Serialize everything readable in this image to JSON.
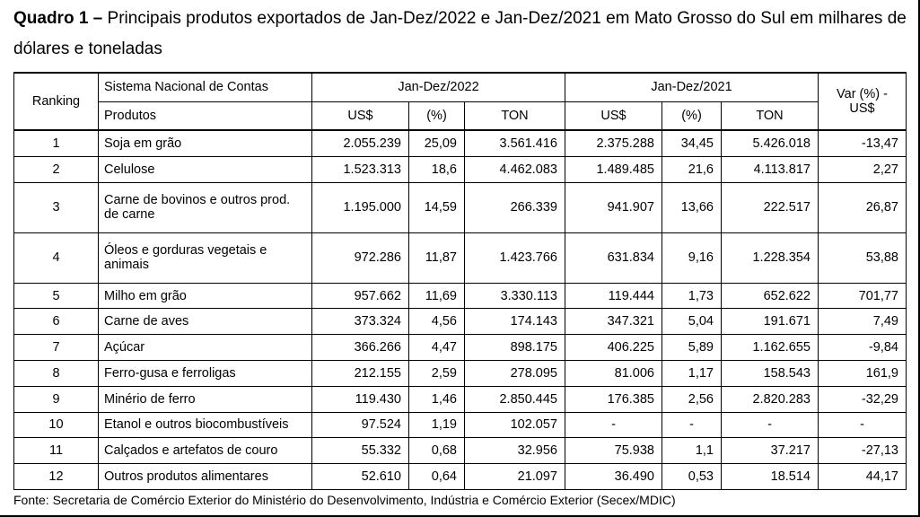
{
  "title": {
    "bold": "Quadro 1 –",
    "text": " Principais produtos exportados de Jan-Dez/2022 e Jan-Dez/2021 em Mato Grosso do Sul em milhares de dólares e toneladas"
  },
  "header": {
    "ranking": "Ranking",
    "sistema": "Sistema Nacional de Contas",
    "produtos": "Produtos",
    "period_2022": "Jan-Dez/2022",
    "period_2021": "Jan-Dez/2021",
    "var": "Var (%) - US$",
    "usd": "US$",
    "pct": "(%)",
    "ton": "TON"
  },
  "rows": [
    {
      "ranking": "1",
      "produto": "Soja em grão",
      "usd_2022": "2.055.239",
      "pct_2022": "25,09",
      "ton_2022": "3.561.416",
      "usd_2021": "2.375.288",
      "pct_2021": "34,45",
      "ton_2021": "5.426.018",
      "var": "-13,47"
    },
    {
      "ranking": "2",
      "produto": "Celulose",
      "usd_2022": "1.523.313",
      "pct_2022": "18,6",
      "ton_2022": "4.462.083",
      "usd_2021": "1.489.485",
      "pct_2021": "21,6",
      "ton_2021": "4.113.817",
      "var": "2,27"
    },
    {
      "ranking": "3",
      "produto": "Carne de bovinos e outros prod. de carne",
      "usd_2022": "1.195.000",
      "pct_2022": "14,59",
      "ton_2022": "266.339",
      "usd_2021": "941.907",
      "pct_2021": "13,66",
      "ton_2021": "222.517",
      "var": "26,87"
    },
    {
      "ranking": "4",
      "produto": "Óleos e gorduras vegetais e animais",
      "usd_2022": "972.286",
      "pct_2022": "11,87",
      "ton_2022": "1.423.766",
      "usd_2021": "631.834",
      "pct_2021": "9,16",
      "ton_2021": "1.228.354",
      "var": "53,88"
    },
    {
      "ranking": "5",
      "produto": "Milho em grão",
      "usd_2022": "957.662",
      "pct_2022": "11,69",
      "ton_2022": "3.330.113",
      "usd_2021": "119.444",
      "pct_2021": "1,73",
      "ton_2021": "652.622",
      "var": "701,77"
    },
    {
      "ranking": "6",
      "produto": "Carne de aves",
      "usd_2022": "373.324",
      "pct_2022": "4,56",
      "ton_2022": "174.143",
      "usd_2021": "347.321",
      "pct_2021": "5,04",
      "ton_2021": "191.671",
      "var": "7,49"
    },
    {
      "ranking": "7",
      "produto": "Açúcar",
      "usd_2022": "366.266",
      "pct_2022": "4,47",
      "ton_2022": "898.175",
      "usd_2021": "406.225",
      "pct_2021": "5,89",
      "ton_2021": "1.162.655",
      "var": "-9,84"
    },
    {
      "ranking": "8",
      "produto": "Ferro-gusa e ferroligas",
      "usd_2022": "212.155",
      "pct_2022": "2,59",
      "ton_2022": "278.095",
      "usd_2021": "81.006",
      "pct_2021": "1,17",
      "ton_2021": "158.543",
      "var": "161,9"
    },
    {
      "ranking": "9",
      "produto": "Minério de ferro",
      "usd_2022": "119.430",
      "pct_2022": "1,46",
      "ton_2022": "2.850.445",
      "usd_2021": "176.385",
      "pct_2021": "2,56",
      "ton_2021": "2.820.283",
      "var": "-32,29"
    },
    {
      "ranking": "10",
      "produto": "Etanol e outros biocombustíveis",
      "usd_2022": "97.524",
      "pct_2022": "1,19",
      "ton_2022": "102.057",
      "usd_2021": "-",
      "pct_2021": "-",
      "ton_2021": "-",
      "var": "-"
    },
    {
      "ranking": "11",
      "produto": "Calçados e artefatos de couro",
      "usd_2022": "55.332",
      "pct_2022": "0,68",
      "ton_2022": "32.956",
      "usd_2021": "75.938",
      "pct_2021": "1,1",
      "ton_2021": "37.217",
      "var": "-27,13"
    },
    {
      "ranking": "12",
      "produto": "Outros produtos alimentares",
      "usd_2022": "52.610",
      "pct_2022": "0,64",
      "ton_2022": "21.097",
      "usd_2021": "36.490",
      "pct_2021": "0,53",
      "ton_2021": "18.514",
      "var": "44,17"
    }
  ],
  "source": "Fonte: Secretaria de Comércio Exterior do Ministério do Desenvolvimento, Indústria e Comércio Exterior (Secex/MDIC)"
}
